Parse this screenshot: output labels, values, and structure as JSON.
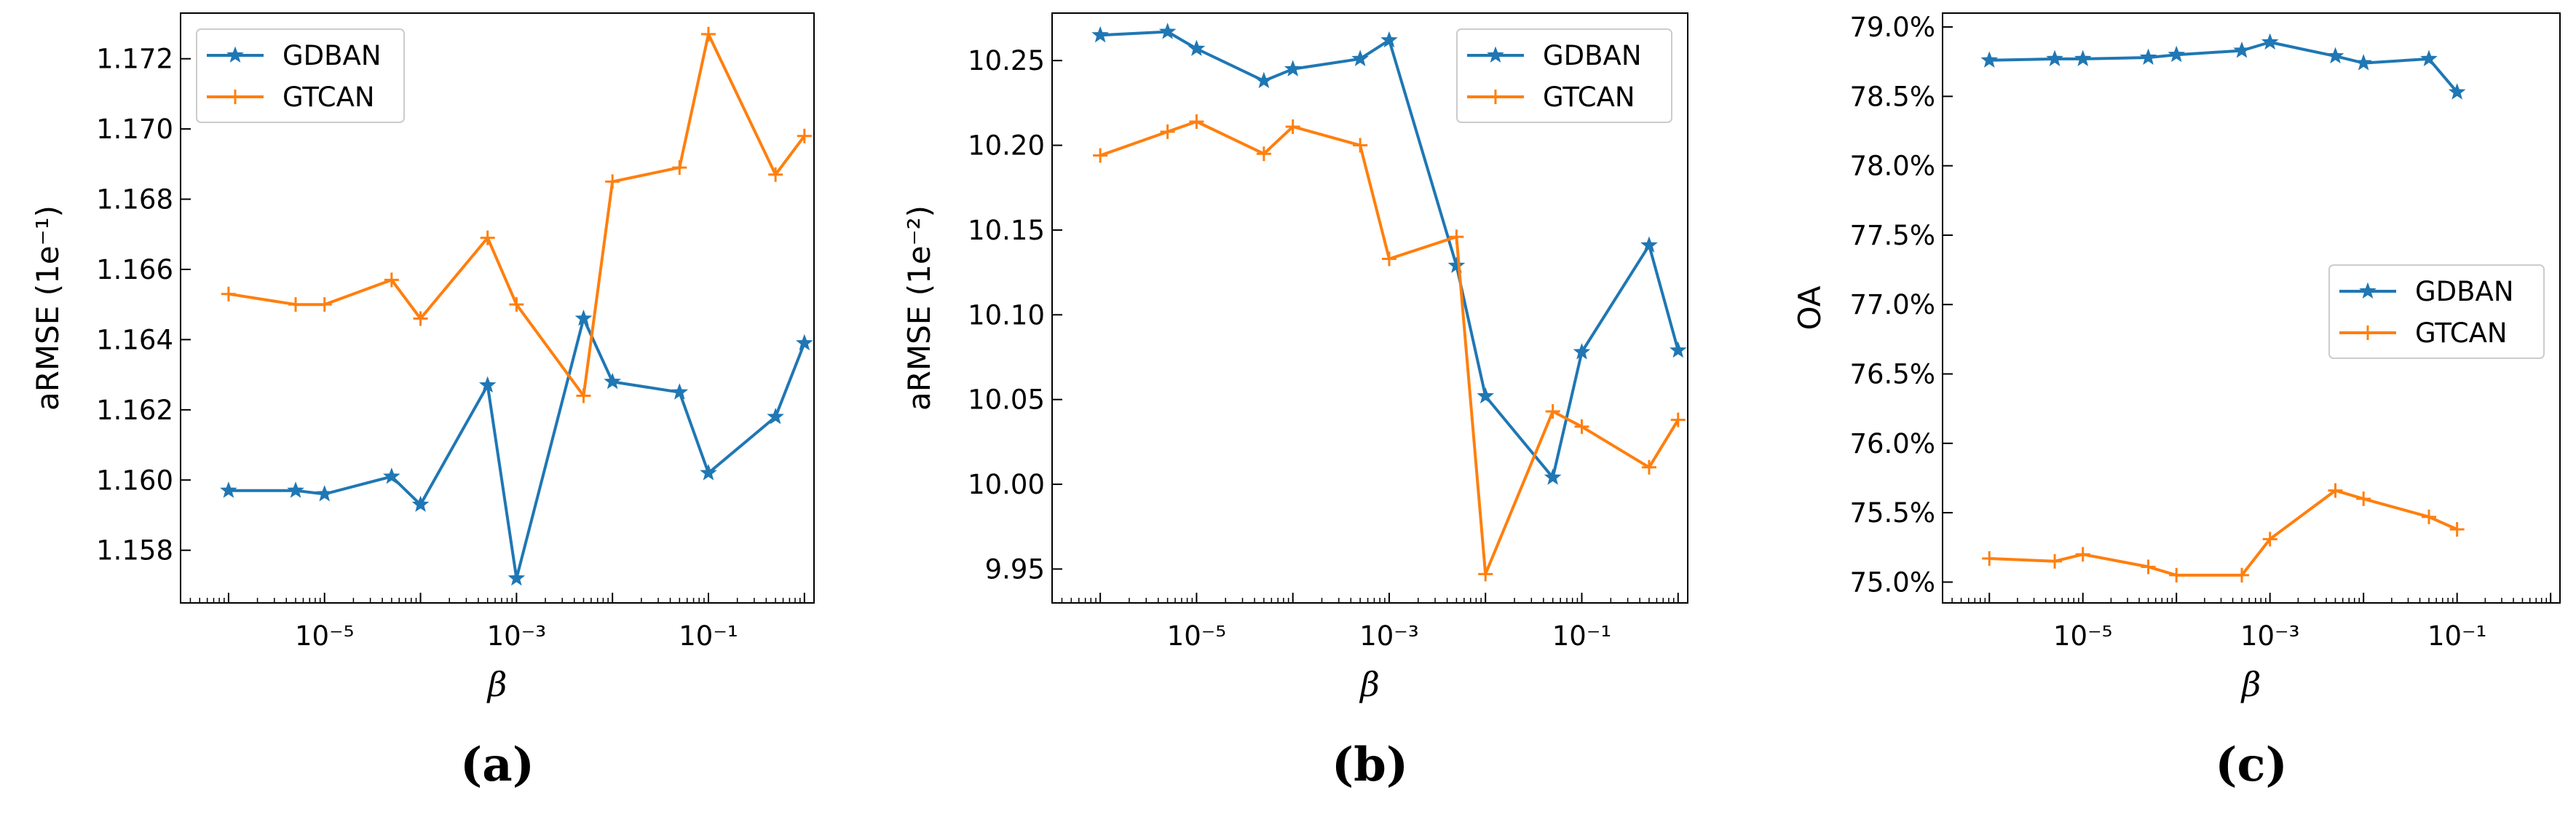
{
  "chart_data": [
    {
      "id": "a",
      "type": "line",
      "panel_label": "(a)",
      "xlabel": "β",
      "ylabel": "aRMSE (1e⁻¹)",
      "xscale": "log",
      "xlim_exp": [
        -6.5,
        0.1
      ],
      "ylim": [
        1.1565,
        1.1733
      ],
      "xticks": [
        {
          "exp": -5,
          "label": "10⁻⁵"
        },
        {
          "exp": -3,
          "label": "10⁻³"
        },
        {
          "exp": -1,
          "label": "10⁻¹"
        }
      ],
      "yticks": [
        {
          "v": 1.158,
          "label": "1.158"
        },
        {
          "v": 1.16,
          "label": "1.160"
        },
        {
          "v": 1.162,
          "label": "1.162"
        },
        {
          "v": 1.164,
          "label": "1.164"
        },
        {
          "v": 1.166,
          "label": "1.166"
        },
        {
          "v": 1.168,
          "label": "1.168"
        },
        {
          "v": 1.17,
          "label": "1.170"
        },
        {
          "v": 1.172,
          "label": "1.172"
        }
      ],
      "legend_position": "top-left",
      "series": [
        {
          "name": "GDBAN",
          "color": "#1f77b4",
          "marker": "star",
          "x": [
            1e-06,
            5e-06,
            1e-05,
            5e-05,
            0.0001,
            0.0005,
            0.001,
            0.005,
            0.01,
            0.05,
            0.1,
            0.5,
            1
          ],
          "values": [
            1.1597,
            1.1597,
            1.1596,
            1.1601,
            1.1593,
            1.1627,
            1.1572,
            1.1646,
            1.1628,
            1.1625,
            1.1602,
            1.1618,
            1.1639
          ]
        },
        {
          "name": "GTCAN",
          "color": "#ff7f0e",
          "marker": "plus",
          "x": [
            1e-06,
            5e-06,
            1e-05,
            5e-05,
            0.0001,
            0.0005,
            0.001,
            0.005,
            0.01,
            0.05,
            0.1,
            0.5,
            1
          ],
          "values": [
            1.1653,
            1.165,
            1.165,
            1.1657,
            1.1646,
            1.1669,
            1.165,
            1.1624,
            1.1685,
            1.1689,
            1.1727,
            1.1687,
            1.1698
          ]
        }
      ]
    },
    {
      "id": "b",
      "type": "line",
      "panel_label": "(b)",
      "xlabel": "β",
      "ylabel": "aRMSE (1e⁻²)",
      "xscale": "log",
      "xlim_exp": [
        -6.5,
        0.1
      ],
      "ylim": [
        9.93,
        10.278
      ],
      "xticks": [
        {
          "exp": -5,
          "label": "10⁻⁵"
        },
        {
          "exp": -3,
          "label": "10⁻³"
        },
        {
          "exp": -1,
          "label": "10⁻¹"
        }
      ],
      "yticks": [
        {
          "v": 9.95,
          "label": "9.95"
        },
        {
          "v": 10.0,
          "label": "10.00"
        },
        {
          "v": 10.05,
          "label": "10.05"
        },
        {
          "v": 10.1,
          "label": "10.10"
        },
        {
          "v": 10.15,
          "label": "10.15"
        },
        {
          "v": 10.2,
          "label": "10.20"
        },
        {
          "v": 10.25,
          "label": "10.25"
        }
      ],
      "legend_position": "top-right",
      "series": [
        {
          "name": "GDBAN",
          "color": "#1f77b4",
          "marker": "star",
          "x": [
            1e-06,
            5e-06,
            1e-05,
            5e-05,
            0.0001,
            0.0005,
            0.001,
            0.005,
            0.01,
            0.05,
            0.1,
            0.5,
            1
          ],
          "values": [
            10.265,
            10.267,
            10.257,
            10.238,
            10.245,
            10.251,
            10.262,
            10.129,
            10.052,
            10.004,
            10.078,
            10.141,
            10.079
          ]
        },
        {
          "name": "GTCAN",
          "color": "#ff7f0e",
          "marker": "plus",
          "x": [
            1e-06,
            5e-06,
            1e-05,
            5e-05,
            0.0001,
            0.0005,
            0.001,
            0.005,
            0.01,
            0.05,
            0.1,
            0.5,
            1
          ],
          "values": [
            10.194,
            10.208,
            10.214,
            10.195,
            10.211,
            10.2,
            10.133,
            10.146,
            9.947,
            10.043,
            10.034,
            10.01,
            10.038
          ]
        }
      ]
    },
    {
      "id": "c",
      "type": "line",
      "panel_label": "(c)",
      "xlabel": "β",
      "ylabel": "OA",
      "xscale": "log",
      "xlim_exp": [
        -6.5,
        0.1
      ],
      "ylim": [
        74.85,
        79.1
      ],
      "xticks": [
        {
          "exp": -5,
          "label": "10⁻⁵"
        },
        {
          "exp": -3,
          "label": "10⁻³"
        },
        {
          "exp": -1,
          "label": "10⁻¹"
        }
      ],
      "yticks": [
        {
          "v": 75.0,
          "label": "75.0%"
        },
        {
          "v": 75.5,
          "label": "75.5%"
        },
        {
          "v": 76.0,
          "label": "76.0%"
        },
        {
          "v": 76.5,
          "label": "76.5%"
        },
        {
          "v": 77.0,
          "label": "77.0%"
        },
        {
          "v": 77.5,
          "label": "77.5%"
        },
        {
          "v": 78.0,
          "label": "78.0%"
        },
        {
          "v": 78.5,
          "label": "78.5%"
        },
        {
          "v": 79.0,
          "label": "79.0%"
        }
      ],
      "legend_position": "center-right",
      "series": [
        {
          "name": "GDBAN",
          "color": "#1f77b4",
          "marker": "star",
          "x": [
            1e-06,
            5e-06,
            1e-05,
            5e-05,
            0.0001,
            0.0005,
            0.001,
            0.005,
            0.01,
            0.05,
            0.1
          ],
          "values": [
            78.76,
            78.77,
            78.77,
            78.78,
            78.8,
            78.83,
            78.89,
            78.79,
            78.74,
            78.77,
            78.53
          ]
        },
        {
          "name": "GTCAN",
          "color": "#ff7f0e",
          "marker": "plus",
          "x": [
            1e-06,
            5e-06,
            1e-05,
            5e-05,
            0.0001,
            0.0005,
            0.001,
            0.005,
            0.01,
            0.05,
            0.1
          ],
          "values": [
            75.17,
            75.15,
            75.2,
            75.11,
            75.05,
            75.05,
            75.31,
            75.66,
            75.6,
            75.47,
            75.38
          ]
        }
      ]
    }
  ]
}
